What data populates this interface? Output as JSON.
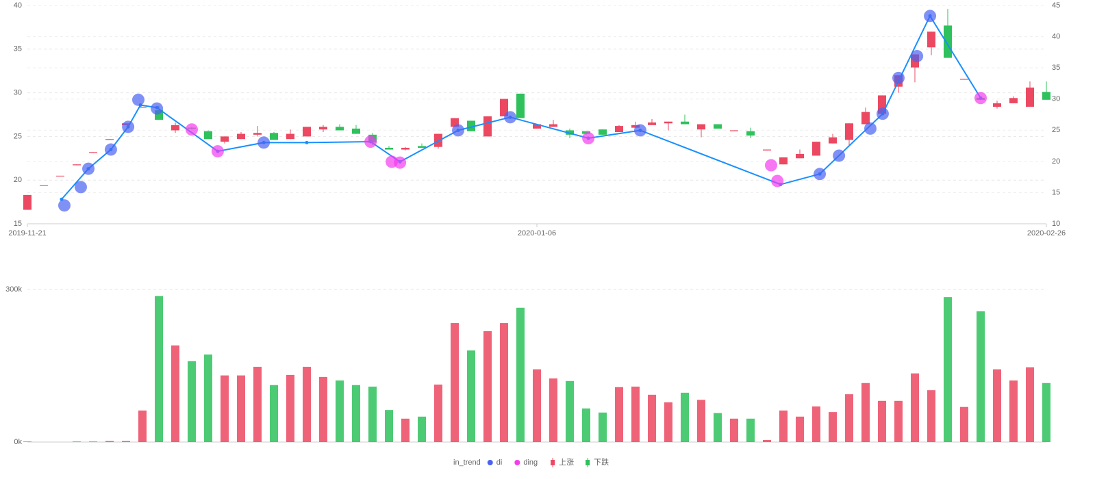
{
  "chart_data": {
    "type": "candlestick",
    "categories": [
      "2019-11-21",
      null,
      null,
      null,
      null,
      null,
      null,
      null,
      null,
      null,
      null,
      null,
      null,
      null,
      null,
      null,
      null,
      null,
      null,
      null,
      null,
      null,
      null,
      null,
      null,
      null,
      null,
      null,
      null,
      null,
      null,
      "2020-01-06",
      null,
      null,
      null,
      null,
      null,
      null,
      null,
      null,
      null,
      null,
      null,
      null,
      null,
      null,
      null,
      null,
      null,
      null,
      null,
      null,
      null,
      null,
      null,
      null,
      null,
      null,
      null,
      null,
      null,
      null,
      "2020-02-26"
    ],
    "ohlc": [
      [
        16.6,
        18.3,
        16.6,
        18.3
      ],
      [
        19.4,
        19.4,
        19.4,
        19.4
      ],
      [
        20.5,
        20.5,
        20.5,
        20.5
      ],
      [
        21.7,
        21.8,
        21.7,
        21.8
      ],
      [
        23.1,
        23.2,
        23.1,
        23.2
      ],
      [
        24.6,
        24.7,
        24.6,
        24.7
      ],
      [
        26.3,
        26.5,
        26.3,
        26.5
      ],
      [
        28.3,
        28.4,
        28.3,
        28.4
      ],
      [
        28.0,
        26.9,
        26.9,
        28.5
      ],
      [
        25.7,
        26.3,
        25.4,
        26.6
      ],
      [
        26.0,
        25.9,
        25.8,
        26.1
      ],
      [
        25.6,
        24.7,
        24.7,
        25.7
      ],
      [
        24.4,
        25.0,
        24.2,
        25.0
      ],
      [
        24.7,
        25.3,
        24.7,
        25.5
      ],
      [
        25.2,
        25.4,
        25.0,
        26.2
      ],
      [
        25.4,
        24.6,
        24.6,
        25.5
      ],
      [
        24.7,
        25.3,
        24.7,
        25.8
      ],
      [
        25.0,
        26.1,
        25.0,
        26.1
      ],
      [
        25.8,
        26.1,
        25.5,
        26.3
      ],
      [
        26.1,
        25.7,
        25.7,
        26.4
      ],
      [
        25.9,
        25.3,
        25.3,
        26.3
      ],
      [
        25.2,
        24.3,
        24.0,
        25.4
      ],
      [
        23.7,
        23.5,
        23.5,
        23.9
      ],
      [
        23.5,
        23.7,
        23.4,
        23.8
      ],
      [
        23.9,
        23.7,
        23.7,
        24.2
      ],
      [
        23.8,
        25.3,
        23.6,
        25.3
      ],
      [
        26.1,
        27.1,
        26.1,
        27.1
      ],
      [
        26.8,
        25.6,
        25.6,
        26.8
      ],
      [
        25.0,
        27.3,
        25.0,
        27.3
      ],
      [
        27.3,
        29.3,
        27.3,
        29.3
      ],
      [
        29.9,
        27.1,
        27.1,
        29.9
      ],
      [
        25.9,
        26.4,
        25.9,
        26.4
      ],
      [
        26.1,
        26.4,
        26.1,
        26.9
      ],
      [
        25.7,
        25.2,
        24.8,
        25.9
      ],
      [
        25.6,
        25.3,
        25.2,
        25.6
      ],
      [
        25.8,
        25.2,
        25.2,
        25.8
      ],
      [
        25.5,
        26.2,
        25.5,
        26.3
      ],
      [
        26.0,
        26.3,
        26.0,
        26.7
      ],
      [
        26.3,
        26.6,
        26.3,
        27.0
      ],
      [
        26.5,
        26.7,
        25.7,
        26.7
      ],
      [
        26.7,
        26.4,
        26.4,
        27.5
      ],
      [
        25.8,
        26.4,
        24.9,
        26.4
      ],
      [
        26.4,
        25.9,
        25.9,
        26.4
      ],
      [
        25.6,
        25.7,
        25.6,
        25.7
      ],
      [
        25.6,
        25.1,
        24.8,
        26.0
      ],
      [
        23.4,
        23.5,
        23.4,
        23.5
      ],
      [
        21.8,
        22.6,
        21.8,
        22.6
      ],
      [
        22.5,
        23.0,
        22.5,
        23.5
      ],
      [
        22.8,
        24.4,
        22.8,
        24.4
      ],
      [
        24.2,
        24.9,
        24.2,
        25.3
      ],
      [
        24.6,
        26.5,
        23.9,
        26.5
      ],
      [
        26.4,
        27.8,
        26.4,
        28.3
      ],
      [
        27.6,
        29.7,
        27.6,
        29.7
      ],
      [
        30.7,
        32.0,
        30.0,
        32.0
      ],
      [
        32.9,
        34.4,
        31.2,
        34.4
      ],
      [
        35.2,
        37.0,
        34.3,
        37.0
      ],
      [
        37.7,
        34.0,
        34.0,
        39.6
      ],
      [
        31.5,
        31.6,
        31.5,
        31.6
      ],
      [
        29.4,
        29.2,
        29.2,
        29.5
      ],
      [
        28.4,
        28.8,
        28.2,
        29.1
      ],
      [
        28.8,
        29.4,
        28.8,
        29.6
      ],
      [
        28.4,
        30.6,
        28.4,
        31.3
      ],
      [
        30.1,
        29.2,
        29.2,
        31.3
      ]
    ],
    "up": {
      "name": "上涨",
      "color": "#ec4862"
    },
    "down": {
      "name": "下跌",
      "color": "#2ec15c"
    },
    "line": {
      "name": "in_trend",
      "color": "#1890ff",
      "x": [
        2.08,
        3.71,
        5.08,
        6.13,
        6.88,
        7.88,
        11.58,
        14.38,
        17,
        20.88,
        22.67,
        26.21,
        29.38,
        34.13,
        37.29,
        45.83,
        48.21,
        52.04,
        54.92,
        58
      ],
      "values": [
        17.8,
        21.3,
        23.5,
        26.1,
        28.6,
        28.3,
        23.3,
        24.3,
        24.3,
        24.4,
        22.1,
        25.7,
        27.2,
        24.8,
        25.7,
        19.5,
        20.7,
        27.6,
        38.8,
        29.4
      ]
    },
    "scatter": [
      {
        "name": "di",
        "color": "#4a62f2",
        "x": [
          2.25,
          3.25,
          3.71,
          5.08,
          6.13,
          6.75,
          7.88,
          14.38,
          26.21,
          29.38,
          37.29,
          48.21,
          49.38,
          51.29,
          52.04,
          53,
          54.13,
          54.92
        ],
        "values": [
          17.1,
          19.2,
          21.3,
          23.5,
          26.1,
          29.2,
          28.2,
          24.3,
          25.7,
          27.2,
          25.7,
          20.7,
          22.8,
          25.9,
          27.6,
          31.7,
          34.2,
          38.8
        ]
      },
      {
        "name": "ding",
        "color": "#f43cee",
        "x": [
          10,
          11.58,
          20.88,
          22.17,
          22.67,
          34.13,
          45.25,
          45.63,
          58
        ],
        "values": [
          25.8,
          23.3,
          24.4,
          22.1,
          22.0,
          24.8,
          21.7,
          19.9,
          29.4
        ]
      }
    ],
    "ylim": [
      15,
      40
    ],
    "yticks": [
      15,
      20,
      25,
      30,
      35,
      40
    ],
    "y2lim": [
      10,
      45
    ],
    "y2ticks": [
      10,
      15,
      20,
      25,
      30,
      35,
      40,
      45
    ],
    "grid": true,
    "volume": {
      "type": "bar",
      "values": [
        1,
        0,
        0,
        1,
        1,
        2,
        2,
        62,
        287,
        190,
        159,
        172,
        131,
        131,
        148,
        112,
        132,
        148,
        128,
        121,
        112,
        109,
        63,
        46,
        50,
        113,
        234,
        180,
        218,
        234,
        264,
        143,
        125,
        120,
        66,
        58,
        108,
        109,
        93,
        78,
        97,
        83,
        57,
        46,
        46,
        4,
        62,
        50,
        70,
        59,
        94,
        116,
        81,
        81,
        135,
        102,
        285,
        69,
        257,
        143,
        121,
        147,
        116
      ],
      "ylim": [
        0,
        300
      ],
      "yticks": [
        {
          "value": 0,
          "label": "0k"
        },
        {
          "value": 300,
          "label": "300k"
        }
      ]
    }
  }
}
